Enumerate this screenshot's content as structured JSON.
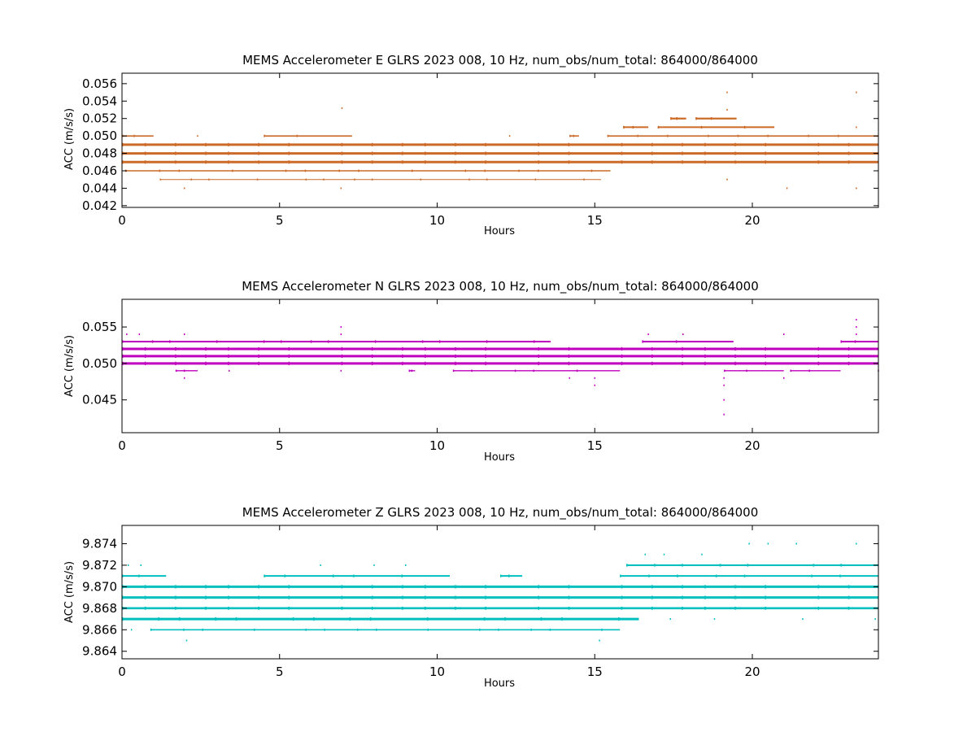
{
  "chart_data": [
    {
      "type": "scatter",
      "title": "MEMS Accelerometer E GLRS 2023 008, 10 Hz, num_obs/num_total: 864000/864000",
      "xlabel": "Hours",
      "ylabel": "ACC (m/s/s)",
      "xlim": [
        0,
        24
      ],
      "ylim": [
        0.0418,
        0.0572
      ],
      "xticks": [
        0,
        5,
        10,
        15,
        20
      ],
      "yticks": [
        0.042,
        0.044,
        0.046,
        0.048,
        0.05,
        0.052,
        0.054,
        0.056
      ],
      "ytick_labels": [
        "0.042",
        "0.044",
        "0.046",
        "0.048",
        "0.050",
        "0.052",
        "0.054",
        "0.056"
      ],
      "color": "#cc6b29",
      "grid": false,
      "levels": [
        {
          "y": 0.045,
          "segments": [
            [
              1.2,
              15.2
            ]
          ],
          "weight": 1
        },
        {
          "y": 0.046,
          "segments": [
            [
              0.1,
              15.5
            ]
          ],
          "weight": 1.6
        },
        {
          "y": 0.047,
          "segments": [
            [
              0,
              24
            ]
          ],
          "weight": 3
        },
        {
          "y": 0.048,
          "segments": [
            [
              0,
              24
            ]
          ],
          "weight": 3
        },
        {
          "y": 0.049,
          "segments": [
            [
              0,
              24
            ]
          ],
          "weight": 3
        },
        {
          "y": 0.05,
          "segments": [
            [
              0,
              1.0
            ],
            [
              4.5,
              7.3
            ],
            [
              14.2,
              14.5
            ],
            [
              15.4,
              24
            ]
          ],
          "weight": 1.6
        },
        {
          "y": 0.051,
          "segments": [
            [
              15.9,
              16.7
            ],
            [
              17.0,
              20.7
            ]
          ],
          "weight": 2
        },
        {
          "y": 0.052,
          "segments": [
            [
              17.4,
              17.9
            ],
            [
              18.2,
              19.5
            ]
          ],
          "weight": 2.2
        }
      ],
      "outliers": [
        {
          "x": 1.98,
          "y": 0.044
        },
        {
          "x": 6.95,
          "y": 0.044
        },
        {
          "x": 6.98,
          "y": 0.0532
        },
        {
          "x": 19.2,
          "y": 0.055
        },
        {
          "x": 19.2,
          "y": 0.053
        },
        {
          "x": 19.2,
          "y": 0.045
        },
        {
          "x": 23.3,
          "y": 0.055
        },
        {
          "x": 23.3,
          "y": 0.051
        },
        {
          "x": 23.3,
          "y": 0.044
        },
        {
          "x": 21.1,
          "y": 0.044
        },
        {
          "x": 2.4,
          "y": 0.05
        },
        {
          "x": 12.3,
          "y": 0.05
        }
      ]
    },
    {
      "type": "scatter",
      "title": "MEMS Accelerometer N GLRS 2023 008, 10 Hz, num_obs/num_total: 864000/864000",
      "xlabel": "Hours",
      "ylabel": "ACC (m/s/s)",
      "xlim": [
        0,
        24
      ],
      "ylim": [
        0.0405,
        0.0588
      ],
      "xticks": [
        0,
        5,
        10,
        15,
        20
      ],
      "yticks": [
        0.045,
        0.05,
        0.055
      ],
      "ytick_labels": [
        "0.045",
        "0.050",
        "0.055"
      ],
      "color": "#bf00bf",
      "grid": false,
      "levels": [
        {
          "y": 0.049,
          "segments": [
            [
              1.7,
              2.4
            ],
            [
              9.1,
              9.3
            ],
            [
              10.5,
              15.8
            ],
            [
              19.1,
              21.0
            ],
            [
              21.2,
              22.8
            ]
          ],
          "weight": 1.4
        },
        {
          "y": 0.05,
          "segments": [
            [
              0,
              24
            ]
          ],
          "weight": 3
        },
        {
          "y": 0.051,
          "segments": [
            [
              0,
              24
            ]
          ],
          "weight": 3
        },
        {
          "y": 0.052,
          "segments": [
            [
              0,
              24
            ]
          ],
          "weight": 3
        },
        {
          "y": 0.053,
          "segments": [
            [
              0,
              13.6
            ],
            [
              16.5,
              19.4
            ],
            [
              22.8,
              24
            ]
          ],
          "weight": 2
        }
      ],
      "outliers": [
        {
          "x": 0.15,
          "y": 0.054
        },
        {
          "x": 0.55,
          "y": 0.054
        },
        {
          "x": 1.98,
          "y": 0.054
        },
        {
          "x": 1.98,
          "y": 0.048
        },
        {
          "x": 6.95,
          "y": 0.055
        },
        {
          "x": 6.95,
          "y": 0.054
        },
        {
          "x": 6.95,
          "y": 0.049
        },
        {
          "x": 14.2,
          "y": 0.048
        },
        {
          "x": 15.0,
          "y": 0.048
        },
        {
          "x": 15.0,
          "y": 0.047
        },
        {
          "x": 16.7,
          "y": 0.054
        },
        {
          "x": 17.8,
          "y": 0.054
        },
        {
          "x": 19.1,
          "y": 0.048
        },
        {
          "x": 19.1,
          "y": 0.047
        },
        {
          "x": 19.1,
          "y": 0.045
        },
        {
          "x": 19.1,
          "y": 0.043
        },
        {
          "x": 21.0,
          "y": 0.054
        },
        {
          "x": 21.0,
          "y": 0.048
        },
        {
          "x": 23.3,
          "y": 0.056
        },
        {
          "x": 23.3,
          "y": 0.055
        },
        {
          "x": 23.3,
          "y": 0.054
        },
        {
          "x": 3.4,
          "y": 0.049
        },
        {
          "x": 24.0,
          "y": 0.049
        }
      ]
    },
    {
      "type": "scatter",
      "title": "MEMS Accelerometer Z GLRS 2023 008, 10 Hz, num_obs/num_total: 864000/864000",
      "xlabel": "Hours",
      "ylabel": "ACC (m/s/s)",
      "xlim": [
        0,
        24
      ],
      "ylim": [
        9.8633,
        9.8757
      ],
      "xticks": [
        0,
        5,
        10,
        15,
        20
      ],
      "yticks": [
        9.864,
        9.866,
        9.868,
        9.87,
        9.872,
        9.874
      ],
      "ytick_labels": [
        "9.864",
        "9.866",
        "9.868",
        "9.870",
        "9.872",
        "9.874"
      ],
      "color": "#00bfbf",
      "grid": false,
      "levels": [
        {
          "y": 9.866,
          "segments": [
            [
              0.9,
              15.8
            ]
          ],
          "weight": 1.6
        },
        {
          "y": 9.867,
          "segments": [
            [
              0,
              16.4
            ]
          ],
          "weight": 3
        },
        {
          "y": 9.868,
          "segments": [
            [
              0,
              24
            ]
          ],
          "weight": 2.6
        },
        {
          "y": 9.869,
          "segments": [
            [
              0,
              24
            ]
          ],
          "weight": 3
        },
        {
          "y": 9.87,
          "segments": [
            [
              0,
              24
            ]
          ],
          "weight": 3
        },
        {
          "y": 9.871,
          "segments": [
            [
              0,
              1.4
            ],
            [
              4.5,
              10.4
            ],
            [
              12.0,
              12.7
            ],
            [
              15.8,
              24
            ]
          ],
          "weight": 2
        },
        {
          "y": 9.872,
          "segments": [
            [
              16.0,
              24
            ]
          ],
          "weight": 2.2
        }
      ],
      "outliers": [
        {
          "x": 2.05,
          "y": 9.865
        },
        {
          "x": 15.15,
          "y": 9.865
        },
        {
          "x": 0.3,
          "y": 9.866
        },
        {
          "x": 0.2,
          "y": 9.872
        },
        {
          "x": 0.6,
          "y": 9.872
        },
        {
          "x": 6.3,
          "y": 9.872
        },
        {
          "x": 8.0,
          "y": 9.872
        },
        {
          "x": 9.0,
          "y": 9.872
        },
        {
          "x": 16.6,
          "y": 9.873
        },
        {
          "x": 17.2,
          "y": 9.873
        },
        {
          "x": 18.4,
          "y": 9.873
        },
        {
          "x": 19.9,
          "y": 9.874
        },
        {
          "x": 20.5,
          "y": 9.874
        },
        {
          "x": 21.4,
          "y": 9.874
        },
        {
          "x": 23.3,
          "y": 9.874
        },
        {
          "x": 18.8,
          "y": 9.867
        },
        {
          "x": 17.4,
          "y": 9.867
        },
        {
          "x": 21.6,
          "y": 9.867
        },
        {
          "x": 23.9,
          "y": 9.867
        }
      ]
    }
  ]
}
